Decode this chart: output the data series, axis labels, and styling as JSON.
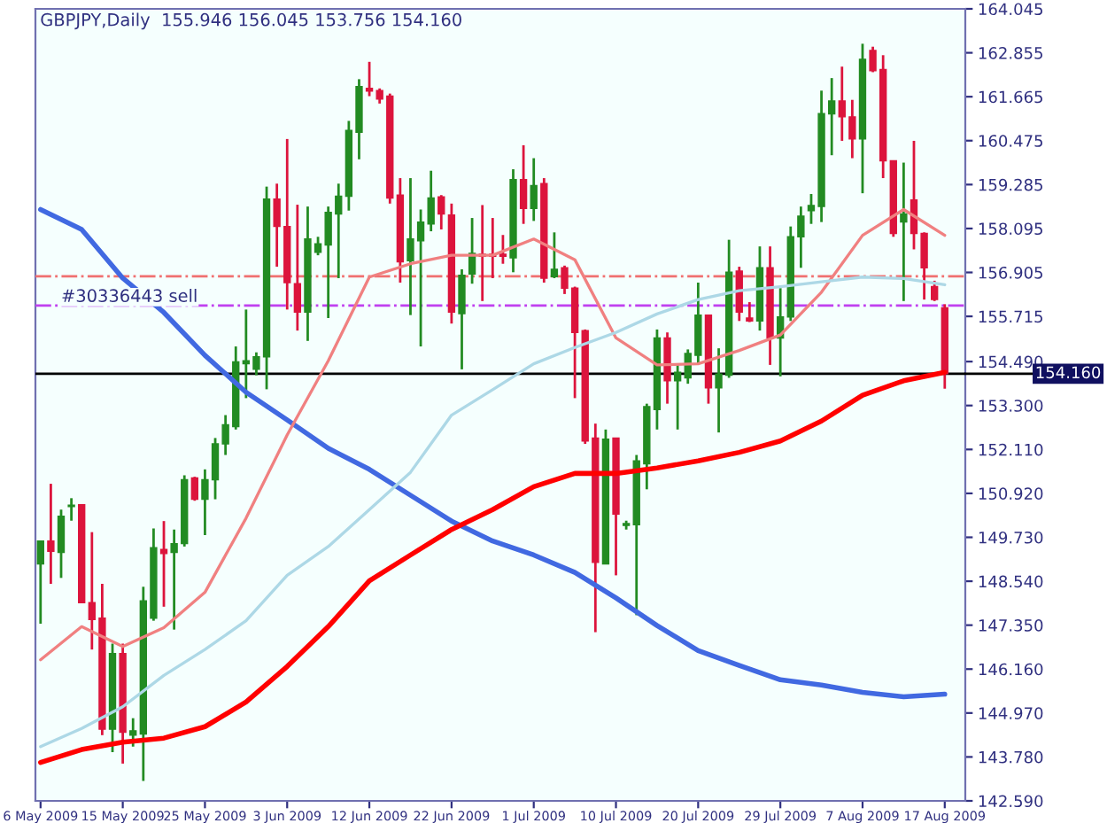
{
  "chart_data": {
    "type": "candlestick",
    "title": "GBPJPY,Daily  155.946 156.045 153.756 154.160",
    "categories": [
      "6 May 2009",
      null,
      null,
      null,
      null,
      null,
      null,
      null,
      "15 May 2009",
      null,
      null,
      null,
      null,
      null,
      null,
      null,
      "25 May 2009",
      null,
      null,
      null,
      null,
      null,
      null,
      null,
      "3 Jun 2009",
      null,
      null,
      null,
      null,
      null,
      null,
      null,
      "12 Jun 2009",
      null,
      null,
      null,
      null,
      null,
      null,
      null,
      "22 Jun 2009",
      null,
      null,
      null,
      null,
      null,
      null,
      null,
      "1 Jul 2009",
      null,
      null,
      null,
      null,
      null,
      null,
      null,
      "10 Jul 2009",
      null,
      null,
      null,
      null,
      null,
      null,
      null,
      "20 Jul 2009",
      null,
      null,
      null,
      null,
      null,
      null,
      null,
      "29 Jul 2009",
      null,
      null,
      null,
      null,
      null,
      null,
      null,
      "7 Aug 2009",
      null,
      null,
      null,
      null,
      null,
      null,
      null,
      "17 Aug 2009"
    ],
    "ohlc": [
      [
        149.01,
        149.63,
        147.39,
        149.63
      ],
      [
        149.63,
        151.18,
        148.47,
        149.35
      ],
      [
        149.32,
        150.48,
        148.63,
        150.3
      ],
      [
        150.56,
        150.79,
        150.18,
        150.6
      ],
      [
        150.61,
        150.61,
        147.96,
        147.96
      ],
      [
        147.96,
        149.87,
        146.69,
        147.5
      ],
      [
        147.54,
        148.47,
        144.37,
        144.53
      ],
      [
        144.53,
        146.85,
        143.91,
        146.58
      ],
      [
        146.58,
        146.85,
        143.6,
        144.45
      ],
      [
        144.37,
        144.83,
        144.06,
        144.49
      ],
      [
        144.4,
        148.39,
        143.13,
        148.01
      ],
      [
        147.54,
        149.97,
        147.47,
        149.45
      ],
      [
        149.4,
        150.17,
        147.85,
        149.29
      ],
      [
        149.32,
        149.94,
        147.23,
        149.56
      ],
      [
        149.56,
        151.41,
        149.48,
        151.29
      ],
      [
        151.34,
        151.37,
        150.72,
        150.76
      ],
      [
        150.76,
        151.57,
        149.79,
        151.29
      ],
      [
        151.29,
        152.42,
        150.76,
        152.26
      ],
      [
        152.26,
        153.04,
        151.96,
        152.78
      ],
      [
        152.73,
        154.9,
        152.65,
        154.48
      ],
      [
        154.43,
        155.9,
        153.5,
        154.51
      ],
      [
        154.28,
        154.74,
        154.12,
        154.62
      ],
      [
        154.62,
        159.23,
        153.74,
        158.89
      ],
      [
        158.89,
        159.31,
        157.06,
        158.15
      ],
      [
        158.15,
        160.52,
        155.9,
        156.63
      ],
      [
        156.6,
        158.74,
        155.33,
        155.83
      ],
      [
        155.83,
        158.69,
        155.05,
        157.81
      ],
      [
        157.45,
        157.87,
        157.37,
        157.68
      ],
      [
        157.65,
        158.69,
        155.67,
        158.53
      ],
      [
        158.49,
        159.31,
        156.75,
        158.97
      ],
      [
        158.97,
        161.01,
        158.58,
        160.75
      ],
      [
        160.7,
        162.14,
        159.97,
        161.94
      ],
      [
        161.89,
        162.61,
        161.68,
        161.82
      ],
      [
        161.83,
        161.89,
        161.48,
        161.6
      ],
      [
        161.68,
        161.75,
        158.77,
        158.92
      ],
      [
        159.0,
        159.46,
        156.63,
        157.19
      ],
      [
        157.22,
        159.46,
        155.75,
        157.81
      ],
      [
        157.76,
        158.61,
        154.9,
        158.27
      ],
      [
        158.22,
        159.66,
        158.02,
        158.92
      ],
      [
        158.95,
        159.0,
        158.07,
        158.49
      ],
      [
        158.46,
        158.77,
        155.52,
        155.83
      ],
      [
        155.79,
        156.99,
        154.28,
        156.83
      ],
      [
        156.86,
        158.38,
        156.6,
        157.42
      ],
      [
        157.4,
        158.73,
        156.13,
        157.34
      ],
      [
        157.4,
        158.38,
        156.75,
        157.34
      ],
      [
        157.4,
        157.92,
        157.14,
        157.34
      ],
      [
        157.3,
        159.7,
        156.91,
        159.42
      ],
      [
        159.42,
        160.35,
        158.22,
        158.64
      ],
      [
        158.64,
        160.0,
        158.3,
        159.26
      ],
      [
        159.31,
        159.46,
        156.63,
        156.75
      ],
      [
        156.79,
        157.99,
        156.75,
        156.99
      ],
      [
        157.03,
        157.09,
        156.32,
        156.48
      ],
      [
        156.48,
        156.52,
        153.5,
        155.28
      ],
      [
        155.33,
        155.36,
        152.26,
        152.34
      ],
      [
        152.42,
        152.81,
        147.16,
        149.05
      ],
      [
        149.01,
        152.65,
        149.01,
        152.39
      ],
      [
        152.42,
        152.42,
        148.7,
        150.36
      ],
      [
        150.05,
        150.18,
        149.94,
        150.1
      ],
      [
        150.07,
        151.96,
        147.62,
        151.8
      ],
      [
        151.72,
        153.35,
        151.03,
        153.27
      ],
      [
        153.19,
        155.36,
        152.65,
        155.13
      ],
      [
        155.13,
        155.28,
        153.35,
        153.97
      ],
      [
        153.97,
        154.43,
        152.65,
        154.2
      ],
      [
        154.05,
        154.82,
        153.89,
        154.71
      ],
      [
        154.66,
        156.63,
        154.43,
        155.75
      ],
      [
        155.75,
        155.75,
        153.35,
        153.78
      ],
      [
        153.78,
        154.85,
        152.57,
        154.15
      ],
      [
        154.12,
        157.79,
        154.05,
        156.91
      ],
      [
        156.94,
        157.06,
        155.59,
        155.83
      ],
      [
        155.67,
        156.1,
        155.56,
        155.59
      ],
      [
        155.59,
        157.61,
        155.33,
        157.03
      ],
      [
        157.03,
        157.61,
        154.4,
        155.13
      ],
      [
        155.13,
        156.48,
        154.09,
        155.7
      ],
      [
        155.7,
        158.15,
        155.59,
        157.87
      ],
      [
        157.87,
        158.69,
        157.03,
        158.43
      ],
      [
        158.58,
        159.03,
        158.22,
        158.72
      ],
      [
        158.69,
        161.83,
        158.27,
        161.21
      ],
      [
        161.2,
        162.17,
        160.08,
        161.55
      ],
      [
        161.55,
        162.48,
        160.47,
        161.12
      ],
      [
        161.12,
        161.58,
        160.0,
        160.52
      ],
      [
        160.52,
        163.1,
        159.05,
        162.68
      ],
      [
        162.92,
        163.02,
        162.33,
        162.37
      ],
      [
        162.4,
        162.79,
        159.46,
        159.93
      ],
      [
        159.93,
        159.93,
        157.87,
        157.96
      ],
      [
        158.27,
        159.88,
        156.13,
        158.49
      ],
      [
        158.87,
        160.47,
        157.53,
        157.96
      ],
      [
        157.96,
        157.99,
        156.17,
        157.03
      ],
      [
        156.52,
        156.68,
        156.13,
        156.17
      ],
      [
        155.946,
        156.045,
        153.756,
        154.16
      ]
    ],
    "colors": [
      "#228b22",
      "#dc143c",
      "#228b22",
      "#228b22",
      "#dc143c",
      "#dc143c",
      "#dc143c",
      "#228b22",
      "#dc143c",
      "#228b22",
      "#228b22",
      "#228b22",
      "#dc143c",
      "#228b22",
      "#228b22",
      "#dc143c",
      "#228b22",
      "#228b22",
      "#228b22",
      "#228b22",
      "#228b22",
      "#228b22",
      "#228b22",
      "#dc143c",
      "#dc143c",
      "#dc143c",
      "#228b22",
      "#228b22",
      "#228b22",
      "#228b22",
      "#228b22",
      "#228b22",
      "#dc143c",
      "#dc143c",
      "#dc143c",
      "#dc143c",
      "#228b22",
      "#228b22",
      "#228b22",
      "#dc143c",
      "#dc143c",
      "#228b22",
      "#228b22",
      "#dc143c",
      "#dc143c",
      "#dc143c",
      "#228b22",
      "#dc143c",
      "#228b22",
      "#dc143c",
      "#228b22",
      "#dc143c",
      "#dc143c",
      "#dc143c",
      "#dc143c",
      "#228b22",
      "#dc143c",
      "#228b22",
      "#228b22",
      "#228b22",
      "#228b22",
      "#dc143c",
      "#228b22",
      "#228b22",
      "#228b22",
      "#dc143c",
      "#228b22",
      "#228b22",
      "#dc143c",
      "#dc143c",
      "#228b22",
      "#dc143c",
      "#228b22",
      "#228b22",
      "#228b22",
      "#228b22",
      "#228b22",
      "#228b22",
      "#dc143c",
      "#dc143c",
      "#228b22",
      "#dc143c",
      "#dc143c",
      "#dc143c",
      "#228b22",
      "#dc143c",
      "#dc143c",
      "#dc143c",
      "#dc143c"
    ],
    "series": [
      {
        "type": "line",
        "color": "#4169e1",
        "values": [
          158.61,
          null,
          null,
          null,
          158.07,
          null,
          null,
          null,
          156.75,
          null,
          null,
          null,
          155.82,
          null,
          null,
          null,
          154.66,
          null,
          null,
          null,
          153.66,
          null,
          null,
          null,
          152.91,
          null,
          null,
          null,
          152.14,
          null,
          null,
          null,
          151.57,
          null,
          null,
          null,
          150.87,
          null,
          null,
          null,
          150.17,
          null,
          null,
          null,
          149.63,
          null,
          null,
          null,
          149.25,
          null,
          null,
          null,
          148.78,
          null,
          null,
          null,
          148.09,
          null,
          null,
          null,
          147.34,
          null,
          null,
          null,
          146.66,
          null,
          null,
          null,
          146.26,
          null,
          null,
          null,
          145.87,
          null,
          null,
          null,
          145.73,
          null,
          null,
          null,
          145.53,
          null,
          null,
          null,
          145.41,
          null,
          null,
          null,
          145.48
        ]
      },
      {
        "type": "line",
        "color": "#ff0000",
        "values": [
          143.63,
          null,
          null,
          null,
          143.98,
          null,
          null,
          null,
          144.18,
          null,
          null,
          null,
          144.29,
          null,
          null,
          null,
          144.6,
          null,
          null,
          null,
          145.27,
          null,
          null,
          null,
          146.23,
          null,
          null,
          null,
          147.31,
          null,
          null,
          null,
          148.55,
          null,
          null,
          null,
          149.25,
          null,
          null,
          null,
          149.94,
          null,
          null,
          null,
          150.48,
          null,
          null,
          null,
          151.1,
          null,
          null,
          null,
          151.46,
          null,
          null,
          null,
          151.46,
          null,
          null,
          null,
          151.61,
          null,
          null,
          null,
          151.8,
          null,
          null,
          null,
          152.03,
          null,
          null,
          null,
          152.34,
          null,
          null,
          null,
          152.88,
          null,
          null,
          null,
          153.58,
          null,
          null,
          null,
          153.97,
          null,
          null,
          null,
          154.2
        ]
      },
      {
        "type": "line",
        "color": "#f08080",
        "values": [
          146.41,
          null,
          null,
          null,
          147.31,
          null,
          null,
          null,
          146.77,
          null,
          null,
          null,
          147.28,
          null,
          null,
          null,
          148.24,
          null,
          null,
          null,
          150.25,
          null,
          null,
          null,
          152.5,
          null,
          null,
          null,
          154.51,
          null,
          null,
          null,
          156.78,
          null,
          null,
          null,
          157.14,
          null,
          null,
          null,
          157.37,
          null,
          null,
          null,
          157.37,
          null,
          null,
          null,
          157.81,
          null,
          null,
          null,
          157.25,
          null,
          null,
          null,
          155.13,
          null,
          null,
          null,
          154.4,
          null,
          null,
          null,
          154.43,
          null,
          null,
          null,
          154.79,
          null,
          null,
          null,
          155.21,
          null,
          null,
          null,
          156.37,
          null,
          null,
          null,
          157.91,
          null,
          null,
          null,
          158.61,
          null,
          null,
          null,
          157.91
        ]
      },
      {
        "type": "line",
        "color": "#add8e6",
        "values": [
          144.06,
          null,
          null,
          null,
          144.55,
          null,
          null,
          null,
          145.14,
          null,
          null,
          null,
          145.99,
          null,
          null,
          null,
          146.69,
          null,
          null,
          null,
          147.47,
          null,
          null,
          null,
          148.7,
          null,
          null,
          null,
          149.48,
          null,
          null,
          null,
          150.48,
          null,
          null,
          null,
          151.49,
          null,
          null,
          null,
          153.04,
          null,
          null,
          null,
          153.73,
          null,
          null,
          null,
          154.43,
          null,
          null,
          null,
          154.87,
          null,
          null,
          null,
          155.28,
          null,
          null,
          null,
          155.78,
          null,
          null,
          null,
          156.17,
          null,
          null,
          null,
          156.41,
          null,
          null,
          null,
          156.52,
          null,
          null,
          null,
          156.65,
          null,
          null,
          null,
          156.78,
          null,
          null,
          null,
          156.74,
          null,
          null,
          null,
          156.57
        ]
      }
    ],
    "ref_lines": [
      {
        "axis": "y",
        "value": 154.16,
        "label": "154.160",
        "color": "#000000",
        "line_style": "solid"
      },
      {
        "axis": "y",
        "value": 156.8,
        "color": "#f07070",
        "line_style": "dashdot"
      },
      {
        "axis": "y",
        "value": 156.01,
        "label": "#30336443 sell",
        "color": "#c040f0",
        "line_style": "dashdot"
      }
    ],
    "ylim": [
      142.59,
      164.045
    ],
    "yticks": [
      164.045,
      162.855,
      161.665,
      160.475,
      159.285,
      158.095,
      156.905,
      155.715,
      {
        "value": 154.49,
        "label": "154.490"
      },
      {
        "value": 153.3,
        "label": "153.300"
      },
      {
        "value": 152.11,
        "label": "152.110"
      },
      {
        "value": 150.92,
        "label": "150.920"
      },
      {
        "value": 149.73,
        "label": "149.730"
      },
      {
        "value": 148.54,
        "label": "148.540"
      },
      {
        "value": 147.35,
        "label": "147.350"
      },
      {
        "value": 146.16,
        "label": "146.160"
      },
      {
        "value": 144.97,
        "label": "144.970"
      },
      {
        "value": 143.78,
        "label": "143.780"
      },
      {
        "value": 142.59,
        "label": "142.590"
      }
    ],
    "grid": false,
    "legend": false
  }
}
